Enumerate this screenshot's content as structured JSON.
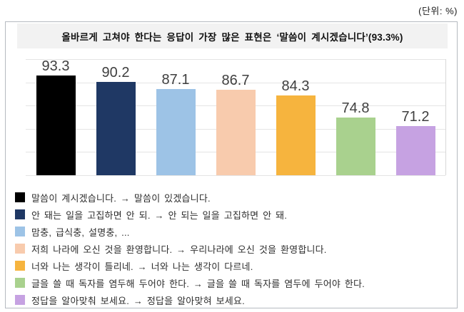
{
  "page": {
    "unit_label": "(단위: %)"
  },
  "panel": {
    "title": "올바르게 고쳐야 한다는 응답이 가장 많은 표현은 ‘말씀이 계시겠습니다’(93.3%)"
  },
  "chart_data": {
    "type": "bar",
    "title": "올바르게 고쳐야 한다는 응답이 가장 많은 표현은 ‘말씀이 계시겠습니다’(93.3%)",
    "unit": "%",
    "categories": [
      "말씀이 계시겠습니다.",
      "안 돼는 일을 고집하면 안 되.",
      "맘충, 급식충, 설명충, ...",
      "저희 나라에 오신 것을 환영합니다.",
      "너와 나는 생각이 틀리네.",
      "글을 쓸 때 독자를 염두해 두어야 한다.",
      "정답을 알아맞춰 보세요."
    ],
    "values": [
      93.3,
      90.2,
      87.1,
      86.7,
      84.3,
      74.8,
      71.2
    ],
    "bar_colors": [
      "#000000",
      "#1F3864",
      "#9DC3E6",
      "#F8CBAD",
      "#F6B43E",
      "#A9D18E",
      "#C6A2E2"
    ],
    "ylim": [
      50,
      100
    ],
    "grid_step": 10,
    "grid": true,
    "value_labels_shown": true,
    "value_axis_shown": false,
    "legend_position": "bottom",
    "legend": [
      {
        "color": "#000000",
        "label": "말씀이 계시겠습니다. → 말씀이 있겠습니다."
      },
      {
        "color": "#1F3864",
        "label": "안 돼는 일을 고집하면 안 되. → 안 되는 일을 고집하면 안 돼."
      },
      {
        "color": "#9DC3E6",
        "label": "맘충, 급식충, 설명충, ..."
      },
      {
        "color": "#F8CBAD",
        "label": "저희 나라에 오신 것을 환영합니다. → 우리나라에 오신 것을 환영합니다."
      },
      {
        "color": "#F6B43E",
        "label": "너와 나는 생각이 틀리네. → 너와 나는 생각이 다르네."
      },
      {
        "color": "#A9D18E",
        "label": "글을 쓸 때 독자를 염두해 두어야 한다. → 글을 쓸 때 독자를 염두에 두어야 한다."
      },
      {
        "color": "#C6A2E2",
        "label": "정답을 알아맞춰 보세요. → 정답을 알아맞혀 보세요."
      }
    ]
  }
}
